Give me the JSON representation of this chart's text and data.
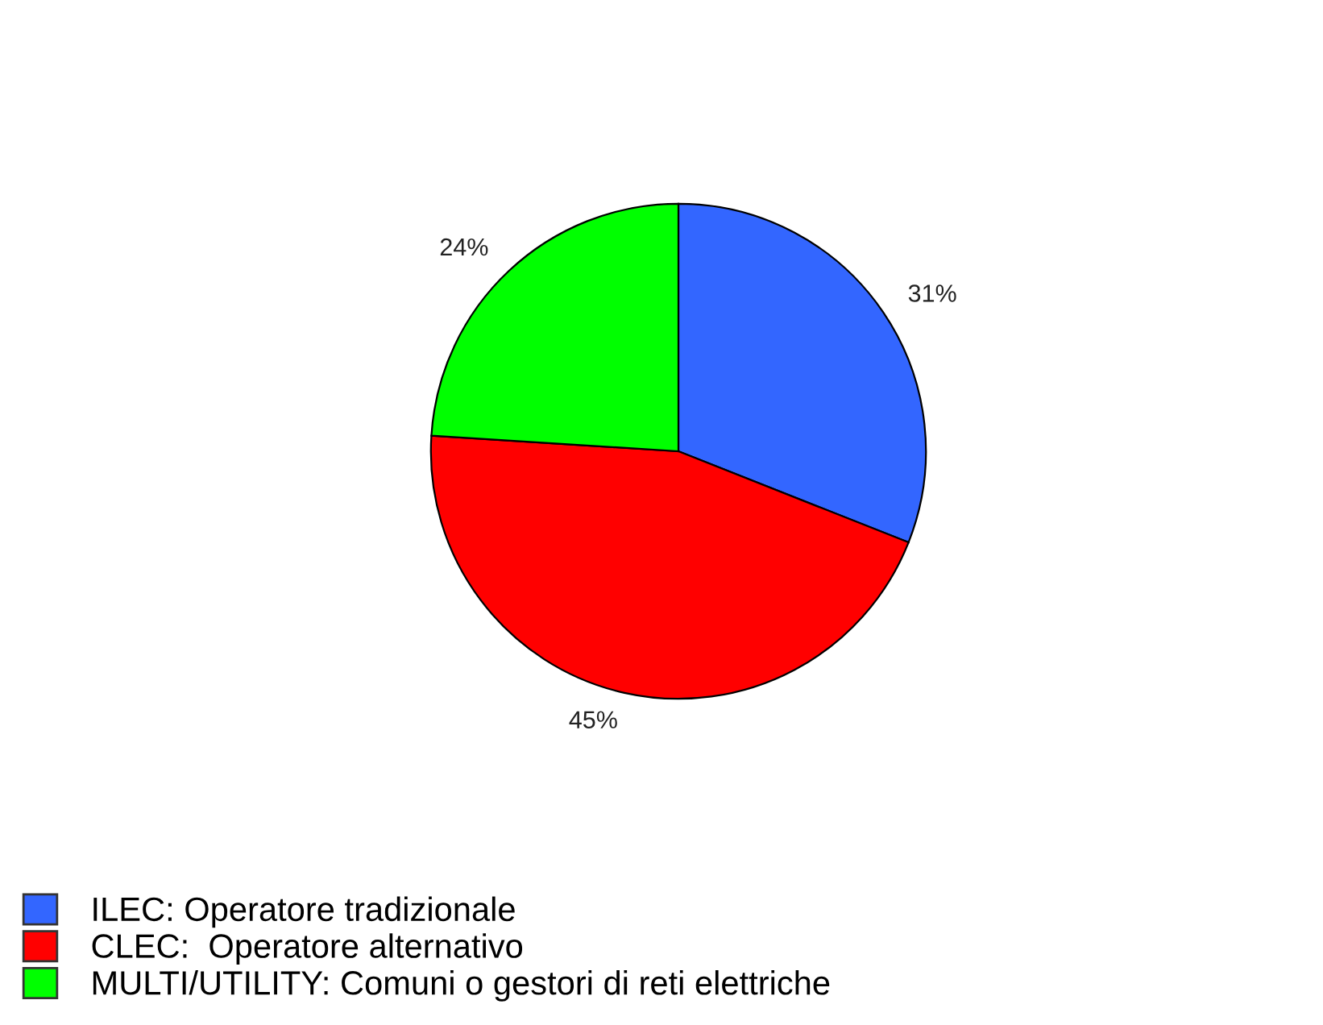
{
  "chart_data": {
    "type": "pie",
    "categories": [
      "ILEC: Operatore tradizionale",
      "CLEC:  Operatore alternativo",
      "MULTI/UTILITY: Comuni o gestori di reti elettriche"
    ],
    "values": [
      31,
      45,
      24
    ],
    "value_labels": [
      "31%",
      "45%",
      "24%"
    ],
    "colors": [
      "#3366ff",
      "#ff0000",
      "#00ff00"
    ],
    "legend": "bottom left"
  }
}
